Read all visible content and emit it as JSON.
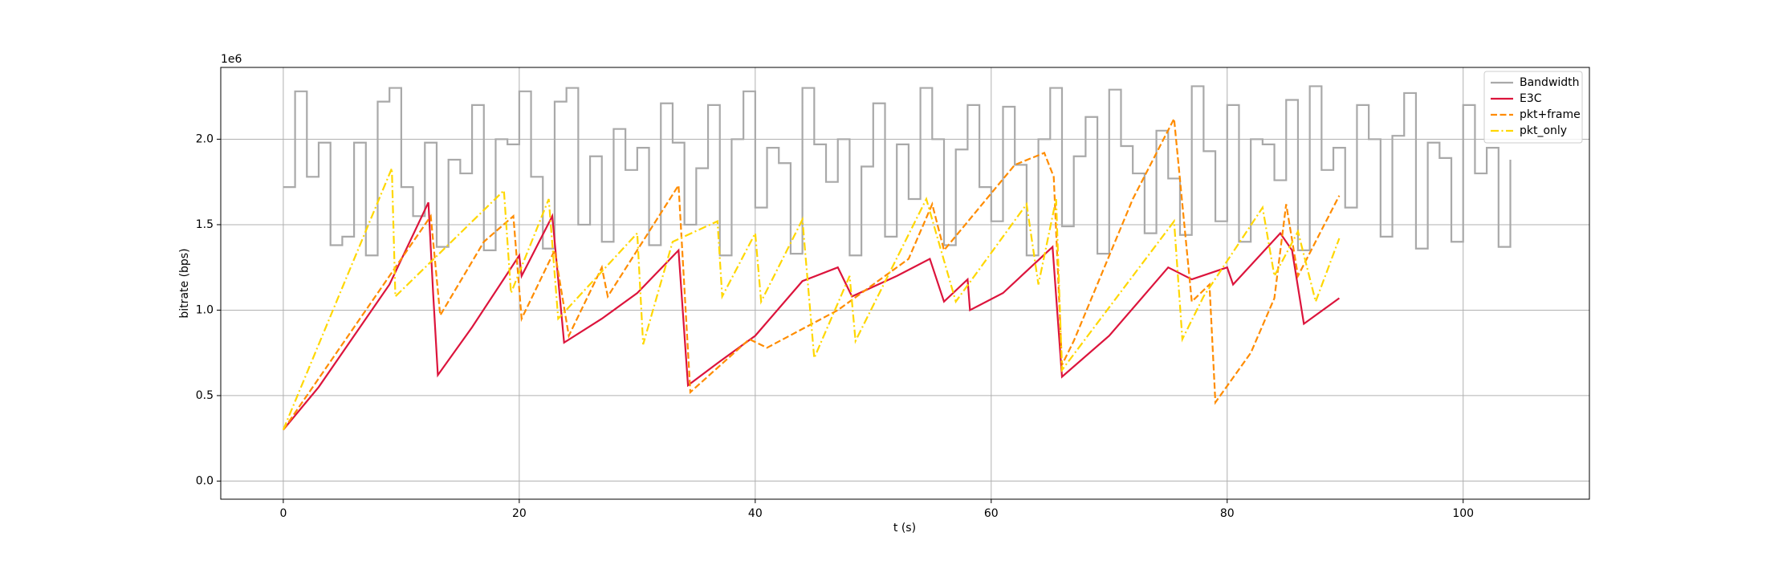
{
  "chart_data": {
    "type": "line",
    "xlabel": "t (s)",
    "ylabel": "bitrate (bps)",
    "y_offset_label": "1e6",
    "xlim": [
      -5.3,
      110.7
    ],
    "xticks": [
      0,
      20,
      40,
      60,
      80,
      100
    ],
    "ylim": [
      -0.106,
      2.42
    ],
    "yticks": [
      {
        "value": 0,
        "label": "0.0"
      },
      0.5,
      {
        "value": 1,
        "label": "1.0"
      },
      1.5,
      {
        "value": 2,
        "label": "2.0"
      }
    ],
    "grid": true,
    "legend": "upper right",
    "series": [
      {
        "name": "Bandwidth",
        "color": "#a9a9a9",
        "linestyle": "solid",
        "drawstyle": "steps-post",
        "x": [
          0,
          1,
          2,
          3,
          4,
          5,
          6,
          7,
          8,
          9,
          10,
          11,
          12,
          13,
          14,
          15,
          16,
          17,
          18,
          19,
          20,
          21,
          22,
          23,
          24,
          25,
          26,
          27,
          28,
          29,
          30,
          31,
          32,
          33,
          34,
          35,
          36,
          37,
          38,
          39,
          40,
          41,
          42,
          43,
          44,
          45,
          46,
          47,
          48,
          49,
          50,
          51,
          52,
          53,
          54,
          55,
          56,
          57,
          58,
          59,
          60,
          61,
          62,
          63,
          64,
          65,
          66,
          67,
          68,
          69,
          70,
          71,
          72,
          73,
          74,
          75,
          76,
          77,
          78,
          79,
          80,
          81,
          82,
          83,
          84,
          85,
          86,
          87,
          88,
          89,
          90,
          91,
          92,
          93,
          94,
          95,
          96,
          97,
          98,
          99,
          100,
          101,
          102,
          103,
          104
        ],
        "values": [
          1.72,
          2.28,
          1.78,
          1.98,
          1.38,
          1.43,
          1.98,
          1.32,
          2.22,
          2.3,
          1.72,
          1.55,
          1.98,
          1.37,
          1.88,
          1.8,
          2.2,
          1.35,
          2.0,
          1.97,
          2.28,
          1.78,
          1.36,
          2.22,
          2.3,
          1.5,
          1.9,
          1.4,
          2.06,
          1.82,
          1.95,
          1.38,
          2.21,
          1.98,
          1.5,
          1.83,
          2.2,
          1.32,
          2.0,
          2.28,
          1.6,
          1.95,
          1.86,
          1.33,
          2.3,
          1.97,
          1.75,
          2.0,
          1.32,
          1.84,
          2.21,
          1.43,
          1.97,
          1.65,
          2.3,
          2.0,
          1.38,
          1.94,
          2.2,
          1.72,
          1.52,
          2.19,
          1.85,
          1.32,
          2.0,
          2.3,
          1.49,
          1.9,
          2.13,
          1.33,
          2.29,
          1.96,
          1.8,
          1.45,
          2.05,
          1.77,
          1.44,
          2.31,
          1.93,
          1.52,
          2.2,
          1.4,
          2.0,
          1.97,
          1.76,
          2.23,
          1.35,
          2.31,
          1.82,
          1.95,
          1.6,
          2.2,
          2.0,
          1.43,
          2.02,
          2.27,
          1.36,
          1.98,
          1.89,
          1.4,
          2.2,
          1.8,
          1.95,
          1.37,
          1.88
        ]
      },
      {
        "name": "E3C",
        "color": "#dc143c",
        "linestyle": "solid",
        "x": [
          0,
          3,
          6,
          9,
          12.3,
          12.7,
          13.1,
          16,
          20,
          20.2,
          22.8,
          23.8,
          27,
          30,
          33.5,
          34.3,
          37,
          40,
          44,
          47,
          48.2,
          52,
          54.8,
          56,
          58,
          58.2,
          61,
          65.2,
          66,
          70,
          75,
          77,
          80,
          80.5,
          84.5,
          85.5,
          86.5,
          89.5
        ],
        "values": [
          0.3,
          0.55,
          0.85,
          1.15,
          1.63,
          1.1,
          0.62,
          0.9,
          1.32,
          1.2,
          1.55,
          0.81,
          0.95,
          1.1,
          1.35,
          0.56,
          0.7,
          0.85,
          1.17,
          1.25,
          1.08,
          1.2,
          1.3,
          1.05,
          1.18,
          1.0,
          1.1,
          1.37,
          0.61,
          0.85,
          1.25,
          1.18,
          1.25,
          1.15,
          1.45,
          1.35,
          0.92,
          1.07
        ]
      },
      {
        "name": "pkt+frame",
        "color": "#ff8c00",
        "linestyle": "dashed",
        "x": [
          0,
          12.5,
          13.3,
          17,
          19.5,
          20.2,
          23,
          24.2,
          27,
          27.5,
          33.5,
          34.5,
          39.5,
          41,
          47,
          53,
          55,
          56,
          62,
          64.5,
          65.3,
          66,
          67,
          72,
          75.5,
          77,
          78.5,
          79,
          82,
          84,
          85,
          86,
          89.5
        ],
        "values": [
          0.3,
          1.55,
          0.97,
          1.4,
          1.55,
          0.95,
          1.35,
          0.85,
          1.25,
          1.08,
          1.73,
          0.52,
          0.83,
          0.78,
          1.0,
          1.3,
          1.62,
          1.35,
          1.85,
          1.92,
          1.78,
          0.68,
          0.82,
          1.65,
          2.12,
          1.05,
          1.15,
          0.46,
          0.75,
          1.07,
          1.62,
          1.2,
          1.67
        ]
      },
      {
        "name": "pkt_only",
        "color": "#ffd700",
        "linestyle": "dashdot",
        "x": [
          0,
          9.2,
          9.5,
          18.7,
          19.3,
          22.5,
          23.3,
          30,
          30.5,
          33,
          36.8,
          37.2,
          40,
          40.5,
          44,
          45,
          48,
          48.5,
          54.5,
          57,
          63,
          64,
          65.5,
          66,
          75.5,
          76.2,
          78,
          83,
          84,
          86,
          87.5,
          89.5
        ],
        "values": [
          0.3,
          1.83,
          1.08,
          1.7,
          1.1,
          1.65,
          0.95,
          1.45,
          0.8,
          1.4,
          1.52,
          1.08,
          1.45,
          1.05,
          1.53,
          0.72,
          1.2,
          0.82,
          1.65,
          1.05,
          1.62,
          1.15,
          1.65,
          0.65,
          1.52,
          0.83,
          1.08,
          1.6,
          1.2,
          1.46,
          1.05,
          1.42
        ]
      }
    ]
  }
}
